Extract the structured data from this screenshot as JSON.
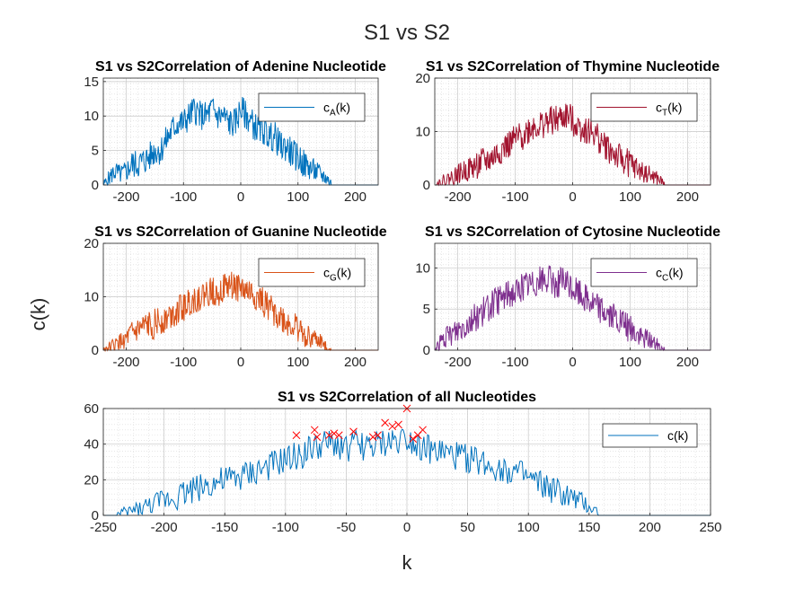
{
  "figure": {
    "title": "S1 vs S2",
    "ylabel": "c(k)",
    "xlabel": "k"
  },
  "chart_data": [
    {
      "type": "line",
      "title": "S1 vs S2Correlation of Adenine Nucleotide",
      "xlim": [
        -240,
        240
      ],
      "ylim": [
        0,
        15.5
      ],
      "xticks": [
        -200,
        -100,
        0,
        100,
        200
      ],
      "yticks": [
        0,
        5,
        10,
        15
      ],
      "grid": "on",
      "legend_position": "top-right",
      "series": [
        {
          "name": "cA(k)",
          "legend_main": "c",
          "legend_sub": "A",
          "legend_tail": "(k)",
          "color": "#0072bd",
          "x": [
            -240,
            -230,
            -220,
            -210,
            -200,
            -190,
            -180,
            -170,
            -160,
            -150,
            -140,
            -130,
            -120,
            -110,
            -100,
            -90,
            -80,
            -70,
            -60,
            -50,
            -40,
            -30,
            -20,
            -10,
            0,
            10,
            20,
            30,
            40,
            50,
            60,
            70,
            80,
            90,
            100,
            110,
            120,
            130,
            140,
            150,
            160,
            170,
            180,
            190,
            200,
            210,
            220,
            230,
            240
          ],
          "values": [
            0,
            1,
            2,
            1.5,
            2,
            3,
            3,
            3.5,
            4,
            5,
            5,
            6.5,
            8,
            9,
            9,
            10,
            11,
            10,
            10,
            11,
            10,
            10,
            9,
            9,
            11,
            10,
            9,
            8,
            8,
            7,
            7,
            5.5,
            5.5,
            4.5,
            4,
            3,
            2.5,
            2,
            1.5,
            1,
            0,
            0,
            0,
            0,
            0,
            0,
            0,
            0,
            0
          ]
        }
      ]
    },
    {
      "type": "line",
      "title": "S1 vs S2Correlation of Thymine Nucleotide",
      "xlim": [
        -240,
        240
      ],
      "ylim": [
        0,
        20
      ],
      "xticks": [
        -200,
        -100,
        0,
        100,
        200
      ],
      "yticks": [
        0,
        10,
        20
      ],
      "grid": "on",
      "legend_position": "top-right",
      "series": [
        {
          "name": "cT(k)",
          "legend_main": "c",
          "legend_sub": "T",
          "legend_tail": "(k)",
          "color": "#a2142f",
          "x": [
            -240,
            -230,
            -220,
            -210,
            -200,
            -190,
            -180,
            -170,
            -160,
            -150,
            -140,
            -130,
            -120,
            -110,
            -100,
            -90,
            -80,
            -70,
            -60,
            -50,
            -40,
            -30,
            -20,
            -10,
            0,
            10,
            20,
            30,
            40,
            50,
            60,
            70,
            80,
            90,
            100,
            110,
            120,
            130,
            140,
            150,
            160,
            170,
            180,
            190,
            200,
            210,
            220,
            230,
            240
          ],
          "values": [
            0,
            0.5,
            1,
            1.5,
            2,
            2.5,
            3,
            3.5,
            4,
            4.5,
            5,
            6,
            7,
            7.5,
            8.5,
            9,
            10,
            11,
            11,
            11.5,
            12,
            12,
            12.5,
            13,
            12,
            11,
            10.5,
            10,
            9.5,
            8,
            7,
            6,
            5,
            4.5,
            4,
            3,
            2.5,
            2,
            1.5,
            1,
            0,
            0,
            0,
            0,
            0,
            0,
            0,
            0,
            0
          ]
        }
      ]
    },
    {
      "type": "line",
      "title": "S1 vs S2Correlation of Guanine Nucleotide",
      "xlim": [
        -240,
        240
      ],
      "ylim": [
        0,
        20
      ],
      "xticks": [
        -200,
        -100,
        0,
        100,
        200
      ],
      "yticks": [
        0,
        10,
        20
      ],
      "grid": "on",
      "legend_position": "top-right",
      "series": [
        {
          "name": "cG(k)",
          "legend_main": "c",
          "legend_sub": "G",
          "legend_tail": "(k)",
          "color": "#d95319",
          "x": [
            -240,
            -230,
            -220,
            -210,
            -200,
            -190,
            -180,
            -170,
            -160,
            -150,
            -140,
            -130,
            -120,
            -110,
            -100,
            -90,
            -80,
            -70,
            -60,
            -50,
            -40,
            -30,
            -20,
            -10,
            0,
            10,
            20,
            30,
            40,
            50,
            60,
            70,
            80,
            90,
            100,
            110,
            120,
            130,
            140,
            150,
            160,
            170,
            180,
            190,
            200,
            210,
            220,
            230,
            240
          ],
          "values": [
            0,
            0.5,
            1,
            1.5,
            2,
            3,
            3.5,
            4,
            4.5,
            5,
            5.5,
            6,
            7,
            7.5,
            8,
            9,
            9.5,
            10,
            10.5,
            11,
            11,
            11.5,
            12,
            12,
            11.5,
            11,
            10.5,
            9.5,
            9,
            8,
            7,
            6,
            5,
            4.5,
            4,
            3,
            2.5,
            2,
            1.5,
            0.5,
            0,
            0,
            0,
            0,
            0,
            0,
            0,
            0,
            0
          ]
        }
      ]
    },
    {
      "type": "line",
      "title": "S1 vs S2Correlation of Cytosine Nucleotide",
      "xlim": [
        -240,
        240
      ],
      "ylim": [
        0,
        13
      ],
      "xticks": [
        -200,
        -100,
        0,
        100,
        200
      ],
      "yticks": [
        0,
        5,
        10
      ],
      "grid": "on",
      "legend_position": "top-right",
      "series": [
        {
          "name": "cC(k)",
          "legend_main": "c",
          "legend_sub": "C",
          "legend_tail": "(k)",
          "color": "#7e2f8e",
          "x": [
            -240,
            -230,
            -220,
            -210,
            -200,
            -190,
            -180,
            -170,
            -160,
            -150,
            -140,
            -130,
            -120,
            -110,
            -100,
            -90,
            -80,
            -70,
            -60,
            -50,
            -40,
            -30,
            -20,
            -10,
            0,
            10,
            20,
            30,
            40,
            50,
            60,
            70,
            80,
            90,
            100,
            110,
            120,
            130,
            140,
            150,
            160,
            170,
            180,
            190,
            200,
            210,
            220,
            230,
            240
          ],
          "values": [
            0,
            1,
            1.5,
            2,
            2.5,
            3,
            3.5,
            4,
            4.5,
            5,
            5.5,
            6,
            6.5,
            7,
            7,
            7.5,
            8,
            8,
            8.5,
            8.5,
            8.5,
            8,
            8.5,
            8,
            7.5,
            7,
            6.5,
            6,
            5.5,
            5,
            4.5,
            4,
            3.5,
            3,
            2.5,
            2,
            1.5,
            1.5,
            1,
            0.5,
            0,
            0,
            0,
            0,
            0,
            0,
            0,
            0,
            0
          ]
        }
      ]
    },
    {
      "type": "line",
      "title": "S1 vs S2Correlation of all Nucleotides",
      "xlim": [
        -250,
        250
      ],
      "ylim": [
        0,
        60
      ],
      "xticks": [
        -250,
        -200,
        -150,
        -100,
        -50,
        0,
        50,
        100,
        150,
        200,
        250
      ],
      "yticks": [
        0,
        20,
        40,
        60
      ],
      "grid": "on",
      "legend_position": "top-right",
      "series": [
        {
          "name": "c(k)",
          "legend_main": "c(k)",
          "legend_sub": "",
          "legend_tail": "",
          "color": "#0072bd",
          "x": [
            -250,
            -240,
            -230,
            -220,
            -210,
            -200,
            -190,
            -180,
            -170,
            -160,
            -150,
            -140,
            -130,
            -120,
            -110,
            -100,
            -90,
            -80,
            -70,
            -60,
            -50,
            -40,
            -30,
            -20,
            -10,
            0,
            10,
            20,
            30,
            40,
            50,
            60,
            70,
            80,
            90,
            100,
            110,
            120,
            130,
            140,
            150,
            160,
            170,
            180,
            190,
            200,
            210,
            220,
            230,
            240,
            250
          ],
          "values": [
            0,
            0,
            2,
            4,
            6,
            9,
            11,
            14,
            16,
            18,
            19,
            21,
            23,
            26,
            28,
            31,
            33,
            37,
            39,
            40,
            38,
            40,
            38,
            40,
            42,
            44,
            40,
            36,
            35,
            33,
            32,
            30,
            28,
            26,
            24,
            20,
            17,
            14,
            11,
            8,
            5,
            0,
            0,
            0,
            0,
            0,
            0,
            0,
            0,
            0,
            0
          ]
        },
        {
          "name": "peaks",
          "marker": "x",
          "color": "#ff0000",
          "x": [
            -91,
            -76,
            -74,
            -64,
            -60,
            -56,
            -44,
            -28,
            -24,
            -18,
            -12,
            -7,
            0,
            5,
            9,
            13
          ],
          "values": [
            45,
            48,
            44,
            45,
            46,
            45,
            47,
            44,
            45,
            52,
            50,
            51,
            60,
            43,
            45,
            48
          ]
        }
      ]
    }
  ]
}
